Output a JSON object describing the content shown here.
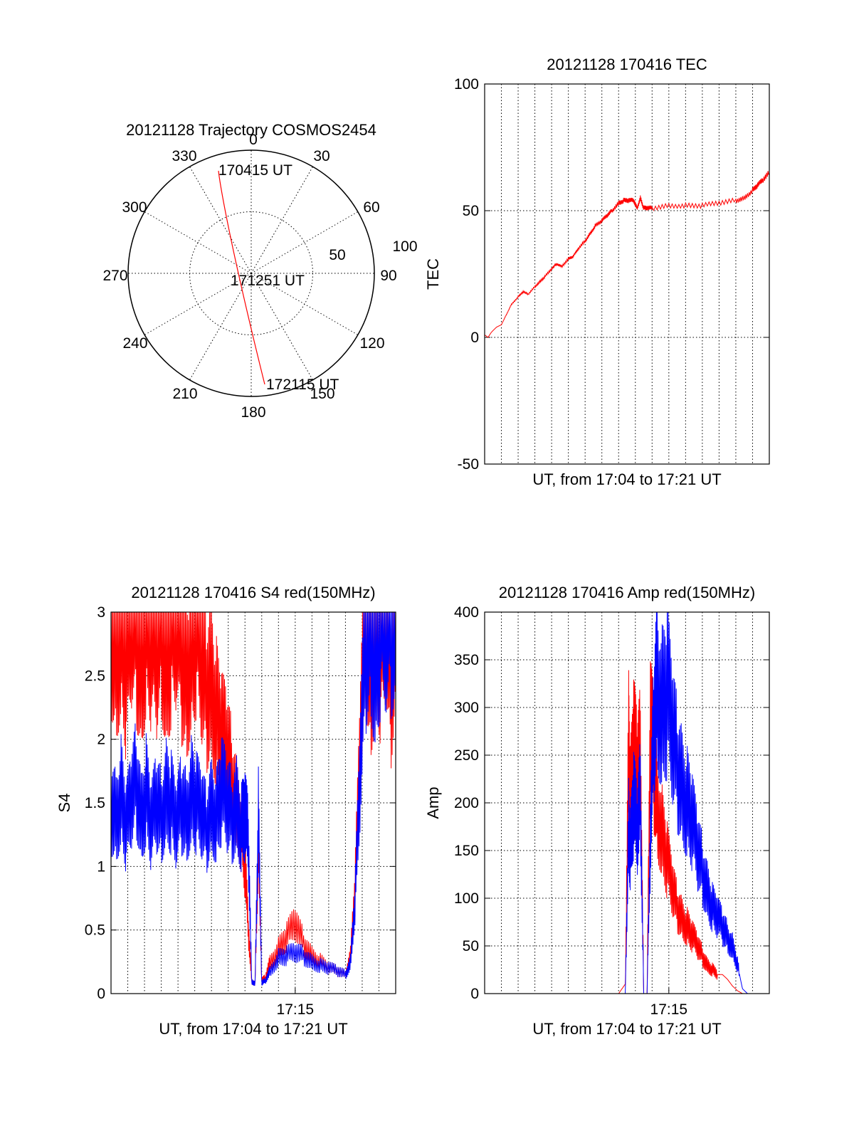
{
  "page": {
    "background": "#ffffff"
  },
  "colors": {
    "red": "#ff0000",
    "blue": "#0000ff",
    "axis": "#000000"
  },
  "chart_data": [
    {
      "type": "polar",
      "title": "20121128 Trajectory COSMOS2454",
      "angle_labels": [
        "0",
        "30",
        "60",
        "90",
        "120",
        "150",
        "180",
        "210",
        "240",
        "270",
        "300",
        "330"
      ],
      "radial_labels": [
        "50",
        "100"
      ],
      "start_label": "170415 UT",
      "mid_label": "171251 UT",
      "end_label": "172115 UT",
      "trajectory": [
        {
          "az": 344,
          "el": 86
        },
        {
          "az": 343,
          "el": 70
        },
        {
          "az": 341,
          "el": 55
        },
        {
          "az": 337,
          "el": 40
        },
        {
          "az": 328,
          "el": 25
        },
        {
          "az": 300,
          "el": 12
        },
        {
          "az": 220,
          "el": 10
        },
        {
          "az": 196,
          "el": 25
        },
        {
          "az": 190,
          "el": 40
        },
        {
          "az": 187,
          "el": 55
        },
        {
          "az": 186,
          "el": 70
        },
        {
          "az": 185,
          "el": 88
        }
      ],
      "series_color": "red"
    },
    {
      "type": "line",
      "title": "20121128 170416 TEC",
      "xlabel": "UT, from 17:04 to 17:21 UT",
      "ylabel": "TEC",
      "ylim": [
        -50,
        100
      ],
      "yticks": [
        "100",
        "50",
        "0",
        "-50"
      ],
      "xlim": [
        0,
        17
      ],
      "x_unit": "minutes after 17:04 UT",
      "grid": true,
      "series": [
        {
          "color": "red",
          "x": [
            0,
            0.2,
            0.4,
            0.7,
            1.0,
            1.3,
            1.6,
            2.0,
            2.3,
            2.6,
            3.0,
            3.3,
            3.6,
            4.0,
            4.3,
            4.6,
            5.0,
            5.3,
            5.6,
            6.0,
            6.3,
            6.6,
            7.0,
            7.3,
            7.6,
            8.0,
            8.3,
            8.6,
            8.9,
            9.1,
            9.3,
            9.5,
            9.7,
            10.0,
            11.0,
            12.0,
            13.0,
            14.0,
            15.0,
            15.5,
            16.0,
            16.3,
            16.6,
            17.0
          ],
          "values": [
            1,
            0,
            2,
            4,
            5,
            9,
            13,
            16,
            18,
            17,
            20,
            22,
            24,
            27,
            29,
            28,
            31,
            32,
            35,
            38,
            41,
            44,
            46,
            48,
            50,
            53,
            54,
            54,
            54,
            51,
            55,
            51,
            51,
            51,
            52,
            52,
            52,
            53,
            54,
            55,
            58,
            60,
            62,
            65
          ]
        }
      ]
    },
    {
      "type": "line",
      "title": "20121128 170416 S4 red(150MHz)",
      "xlabel": "UT, from 17:04 to 17:21 UT",
      "ylabel": "S4",
      "ylim": [
        0,
        3
      ],
      "yticks": [
        "3",
        "2.5",
        "2",
        "1.5",
        "1",
        "0.5",
        "0"
      ],
      "xlim": [
        0,
        17
      ],
      "xticks": [
        {
          "x": 11,
          "label": "17:15"
        }
      ],
      "x_unit": "minutes after 17:04 UT",
      "grid": true,
      "series": [
        {
          "color": "red",
          "x": [
            0,
            0.3,
            0.6,
            0.9,
            1.2,
            1.5,
            1.8,
            2.1,
            2.4,
            2.7,
            3.0,
            3.3,
            3.6,
            3.9,
            4.2,
            4.5,
            4.8,
            5.1,
            5.4,
            5.7,
            6.0,
            6.3,
            6.6,
            6.9,
            7.2,
            7.5,
            7.8,
            8.0,
            8.2,
            8.4,
            8.6,
            8.8,
            9.0,
            9.2,
            9.5,
            10.0,
            10.5,
            11.0,
            11.5,
            12.0,
            12.5,
            13.0,
            13.5,
            14.0,
            14.3,
            14.6,
            14.9,
            15.2,
            15.5,
            15.8,
            16.1,
            16.4,
            16.7,
            17.0
          ],
          "values": [
            3,
            2.7,
            3,
            2.5,
            3,
            2.9,
            2.6,
            3,
            2.8,
            2.7,
            3,
            2.6,
            2.9,
            3,
            2.7,
            2.5,
            2.8,
            3,
            2.6,
            2.4,
            2.5,
            2.2,
            2.0,
            1.9,
            1.7,
            1.5,
            1.3,
            1.0,
            0.5,
            0.1,
            0.08,
            1.2,
            0.1,
            0.12,
            0.25,
            0.35,
            0.45,
            0.55,
            0.4,
            0.3,
            0.25,
            0.2,
            0.18,
            0.15,
            0.3,
            0.9,
            2.0,
            3,
            2.5,
            3,
            2.7,
            3,
            2.4,
            3
          ]
        },
        {
          "color": "blue",
          "x": [
            0,
            0.3,
            0.6,
            0.9,
            1.2,
            1.5,
            1.8,
            2.1,
            2.4,
            2.7,
            3.0,
            3.3,
            3.6,
            3.9,
            4.2,
            4.5,
            4.8,
            5.1,
            5.4,
            5.7,
            6.0,
            6.3,
            6.6,
            6.9,
            7.2,
            7.5,
            7.8,
            8.0,
            8.2,
            8.4,
            8.6,
            8.8,
            9.0,
            9.2,
            9.5,
            10.0,
            10.5,
            11.0,
            11.5,
            12.0,
            12.5,
            13.0,
            13.5,
            14.0,
            14.3,
            14.6,
            14.9,
            15.2,
            15.5,
            15.8,
            16.1,
            16.4,
            16.7,
            17.0
          ],
          "values": [
            1.5,
            1.4,
            1.6,
            1.3,
            1.5,
            1.7,
            1.4,
            1.6,
            1.3,
            1.5,
            1.4,
            1.6,
            1.5,
            1.3,
            1.5,
            1.4,
            1.6,
            1.5,
            1.4,
            1.3,
            1.5,
            1.4,
            1.6,
            1.5,
            1.4,
            1.5,
            1.3,
            1.4,
            1.2,
            0.1,
            0.08,
            1.4,
            0.08,
            0.1,
            0.18,
            0.28,
            0.3,
            0.32,
            0.3,
            0.25,
            0.22,
            0.2,
            0.18,
            0.15,
            0.25,
            0.8,
            1.8,
            2.8,
            3,
            2.6,
            3,
            2.9,
            3,
            3
          ]
        }
      ]
    },
    {
      "type": "line",
      "title": "20121128 170416 Amp red(150MHz)",
      "xlabel": "UT, from 17:04 to 17:21 UT",
      "ylabel": "Amp",
      "ylim": [
        0,
        400
      ],
      "yticks": [
        "400",
        "350",
        "300",
        "250",
        "200",
        "150",
        "100",
        "50",
        "0"
      ],
      "xlim": [
        0,
        17
      ],
      "xticks": [
        {
          "x": 11,
          "label": "17:15"
        }
      ],
      "x_unit": "minutes after 17:04 UT",
      "grid": true,
      "series": [
        {
          "color": "red",
          "x": [
            0,
            2,
            4,
            6,
            8,
            8.4,
            8.6,
            8.7,
            8.9,
            9.1,
            9.3,
            9.5,
            9.7,
            9.9,
            10.1,
            10.3,
            10.6,
            10.9,
            11.2,
            11.5,
            11.8,
            12.1,
            12.4,
            12.7,
            13.0,
            13.3,
            13.6,
            13.9,
            14.2,
            14.5,
            14.8,
            15.1,
            15.4,
            15.7,
            16.0,
            17.0
          ],
          "values": [
            0,
            0,
            0,
            0,
            0,
            10,
            270,
            200,
            260,
            230,
            250,
            0,
            0,
            280,
            240,
            200,
            170,
            140,
            110,
            90,
            80,
            70,
            60,
            50,
            40,
            30,
            25,
            20,
            20,
            15,
            8,
            3,
            0,
            0,
            0,
            0
          ]
        },
        {
          "color": "blue",
          "x": [
            0,
            2,
            4,
            6,
            8,
            8.4,
            8.6,
            8.7,
            8.9,
            9.1,
            9.3,
            9.5,
            9.7,
            9.9,
            10.1,
            10.3,
            10.6,
            10.9,
            11.2,
            11.5,
            11.8,
            12.1,
            12.4,
            12.7,
            13.0,
            13.3,
            13.6,
            13.9,
            14.2,
            14.5,
            14.8,
            15.1,
            15.4,
            15.7,
            16.0,
            17.0
          ],
          "values": [
            0,
            0,
            0,
            0,
            0,
            0,
            180,
            150,
            200,
            170,
            210,
            0,
            0,
            160,
            280,
            330,
            300,
            320,
            270,
            240,
            220,
            200,
            180,
            150,
            130,
            110,
            90,
            80,
            70,
            60,
            50,
            30,
            5,
            0,
            0,
            0
          ]
        }
      ]
    }
  ]
}
